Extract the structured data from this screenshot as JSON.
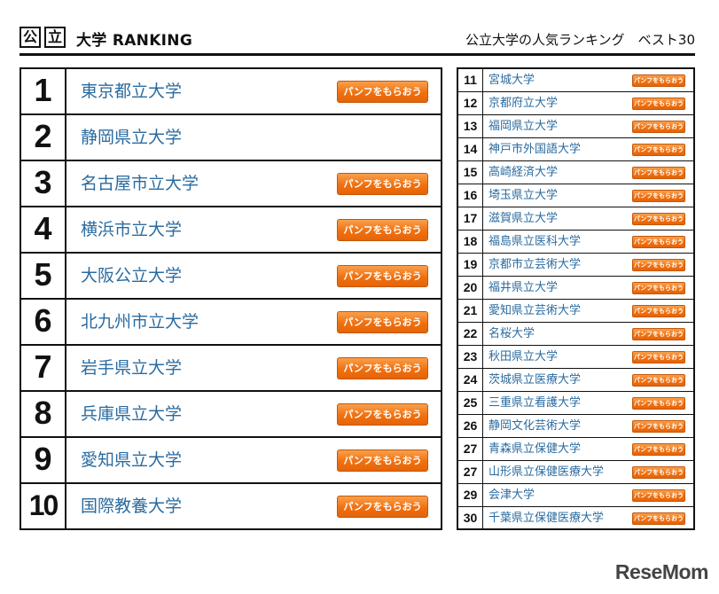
{
  "header": {
    "logo_char_1": "公",
    "logo_char_2": "立",
    "title": "大学 RANKING",
    "subtitle": "公立大学の人気ランキング　ベスト30"
  },
  "pamphlet_button_label": "パンフをもらおう",
  "top_ranks": [
    {
      "rank": "1",
      "name": "東京都立大学",
      "has_button": true
    },
    {
      "rank": "2",
      "name": "静岡県立大学",
      "has_button": false
    },
    {
      "rank": "3",
      "name": "名古屋市立大学",
      "has_button": true
    },
    {
      "rank": "4",
      "name": "横浜市立大学",
      "has_button": true
    },
    {
      "rank": "5",
      "name": "大阪公立大学",
      "has_button": true
    },
    {
      "rank": "6",
      "name": "北九州市立大学",
      "has_button": true
    },
    {
      "rank": "7",
      "name": "岩手県立大学",
      "has_button": true
    },
    {
      "rank": "8",
      "name": "兵庫県立大学",
      "has_button": true
    },
    {
      "rank": "9",
      "name": "愛知県立大学",
      "has_button": true
    },
    {
      "rank": "10",
      "name": "国際教養大学",
      "has_button": true
    }
  ],
  "other_ranks": [
    {
      "rank": "11",
      "name": "宮城大学"
    },
    {
      "rank": "12",
      "name": "京都府立大学"
    },
    {
      "rank": "13",
      "name": "福岡県立大学"
    },
    {
      "rank": "14",
      "name": "神戸市外国語大学"
    },
    {
      "rank": "15",
      "name": "高崎経済大学"
    },
    {
      "rank": "16",
      "name": "埼玉県立大学"
    },
    {
      "rank": "17",
      "name": "滋賀県立大学"
    },
    {
      "rank": "18",
      "name": "福島県立医科大学"
    },
    {
      "rank": "19",
      "name": "京都市立芸術大学"
    },
    {
      "rank": "20",
      "name": "福井県立大学"
    },
    {
      "rank": "21",
      "name": "愛知県立芸術大学"
    },
    {
      "rank": "22",
      "name": "名桜大学"
    },
    {
      "rank": "23",
      "name": "秋田県立大学"
    },
    {
      "rank": "24",
      "name": "茨城県立医療大学"
    },
    {
      "rank": "25",
      "name": "三重県立看護大学"
    },
    {
      "rank": "26",
      "name": "静岡文化芸術大学"
    },
    {
      "rank": "27",
      "name": "青森県立保健大学"
    },
    {
      "rank": "27",
      "name": "山形県立保健医療大学"
    },
    {
      "rank": "29",
      "name": "会津大学"
    },
    {
      "rank": "30",
      "name": "千葉県立保健医療大学"
    }
  ],
  "footer": {
    "brand": "ReseMom"
  }
}
